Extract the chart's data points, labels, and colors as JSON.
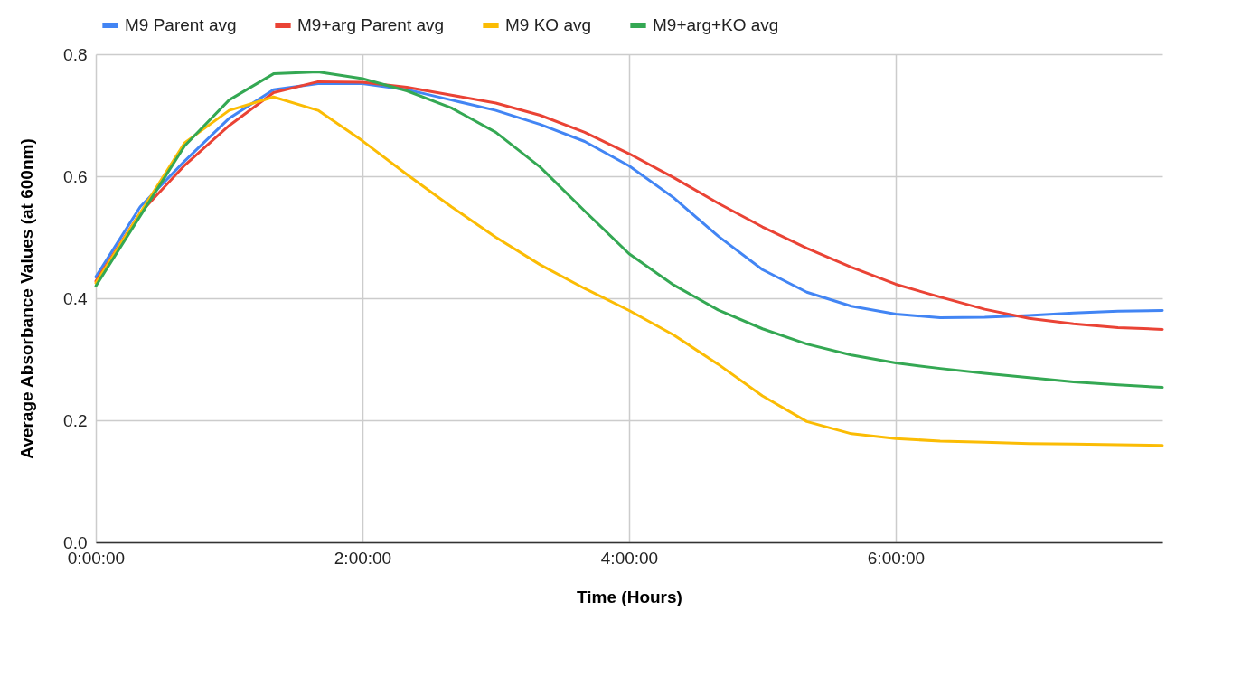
{
  "chart_data": {
    "type": "line",
    "xlabel": "Time (Hours)",
    "ylabel": "Average Absorbance Values (at 600nm)",
    "x": [
      0,
      0.333,
      0.667,
      1,
      1.333,
      1.667,
      2,
      2.333,
      2.667,
      3,
      3.333,
      3.667,
      4,
      4.333,
      4.667,
      5,
      5.333,
      5.667,
      6,
      6.333,
      6.667,
      7,
      7.333,
      7.667,
      8
    ],
    "series": [
      {
        "name": "M9 Parent avg",
        "color": "#4285f4",
        "values": [
          0.435,
          0.55,
          0.625,
          0.695,
          0.742,
          0.752,
          0.752,
          0.742,
          0.725,
          0.708,
          0.685,
          0.657,
          0.617,
          0.565,
          0.502,
          0.447,
          0.41,
          0.387,
          0.374,
          0.368,
          0.369,
          0.372,
          0.376,
          0.379,
          0.38
        ]
      },
      {
        "name": "M9+arg Parent avg",
        "color": "#ea4335",
        "values": [
          0.428,
          0.54,
          0.618,
          0.683,
          0.737,
          0.755,
          0.754,
          0.746,
          0.733,
          0.72,
          0.7,
          0.672,
          0.637,
          0.598,
          0.556,
          0.517,
          0.482,
          0.451,
          0.423,
          0.402,
          0.382,
          0.367,
          0.358,
          0.352,
          0.349
        ]
      },
      {
        "name": "M9 KO avg",
        "color": "#fbbc04",
        "values": [
          0.425,
          0.54,
          0.655,
          0.708,
          0.73,
          0.708,
          0.658,
          0.603,
          0.55,
          0.5,
          0.455,
          0.416,
          0.38,
          0.34,
          0.292,
          0.24,
          0.198,
          0.178,
          0.17,
          0.166,
          0.164,
          0.162,
          0.161,
          0.16,
          0.159
        ]
      },
      {
        "name": "M9+arg+KO avg",
        "color": "#34a853",
        "values": [
          0.42,
          0.535,
          0.65,
          0.725,
          0.768,
          0.771,
          0.76,
          0.74,
          0.712,
          0.672,
          0.615,
          0.543,
          0.473,
          0.422,
          0.381,
          0.35,
          0.325,
          0.307,
          0.294,
          0.285,
          0.277,
          0.27,
          0.263,
          0.258,
          0.254
        ]
      }
    ],
    "xlim": [
      0,
      8
    ],
    "xticks": [
      {
        "value": 0,
        "label": "0:00:00"
      },
      {
        "value": 2,
        "label": "2:00:00"
      },
      {
        "value": 4,
        "label": "4:00:00"
      },
      {
        "value": 6,
        "label": "6:00:00"
      }
    ],
    "ylim": [
      0,
      0.8
    ],
    "yticks": [
      {
        "value": 0,
        "label": "0.0"
      },
      0.2,
      0.4,
      0.6,
      0.8
    ],
    "grid": true,
    "legend": "top",
    "marker": "none",
    "line_style": "solid"
  }
}
